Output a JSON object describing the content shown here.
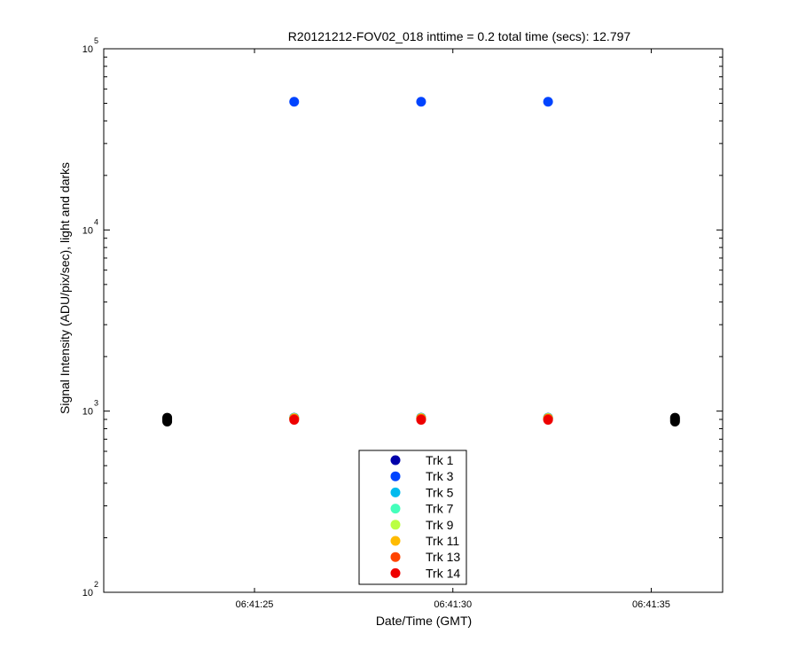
{
  "chart_data": {
    "type": "scatter",
    "title": "R20121212-FOV02_018 inttime = 0.2 total time (secs): 12.797",
    "xlabel": "Date/Time (GMT)",
    "ylabel": "Signal Intensity (ADU/pix/sec), light and darks",
    "x_scale": "time",
    "y_scale": "log",
    "xlim": [
      "06:41:21.2",
      "06:41:36.8"
    ],
    "ylim": [
      100,
      100000
    ],
    "x_ticks": [
      {
        "value": "06:41:25",
        "label": "06:41:25"
      },
      {
        "value": "06:41:30",
        "label": "06:41:30"
      },
      {
        "value": "06:41:35",
        "label": "06:41:35"
      }
    ],
    "y_ticks": [
      {
        "value": 100,
        "base": "10",
        "exponent": "2"
      },
      {
        "value": 1000,
        "base": "10",
        "exponent": "3"
      },
      {
        "value": 10000,
        "base": "10",
        "exponent": "4"
      },
      {
        "value": 100000,
        "base": "10",
        "exponent": "5"
      }
    ],
    "grid": false,
    "legend_position": "bottom-center",
    "series": [
      {
        "name": "Trk 1",
        "color": "#0000aa",
        "points": [
          [
            "06:41:26.0",
            920
          ],
          [
            "06:41:29.2",
            920
          ],
          [
            "06:41:32.4",
            920
          ]
        ]
      },
      {
        "name": "Trk 3",
        "color": "#0044ff",
        "points": [
          [
            "06:41:26.0",
            51000
          ],
          [
            "06:41:29.2",
            51000
          ],
          [
            "06:41:32.4",
            51000
          ]
        ]
      },
      {
        "name": "Trk 5",
        "color": "#00bbee",
        "points": [
          [
            "06:41:26.0",
            918
          ],
          [
            "06:41:29.2",
            918
          ],
          [
            "06:41:32.4",
            918
          ]
        ]
      },
      {
        "name": "Trk 7",
        "color": "#44ffbb",
        "points": [
          [
            "06:41:26.0",
            916
          ],
          [
            "06:41:29.2",
            916
          ],
          [
            "06:41:32.4",
            916
          ]
        ]
      },
      {
        "name": "Trk 9",
        "color": "#bbff44",
        "points": [
          [
            "06:41:26.0",
            914
          ],
          [
            "06:41:29.2",
            914
          ],
          [
            "06:41:32.4",
            914
          ]
        ]
      },
      {
        "name": "Trk 11",
        "color": "#ffbb00",
        "points": [
          [
            "06:41:26.0",
            912
          ],
          [
            "06:41:29.2",
            912
          ],
          [
            "06:41:32.4",
            912
          ]
        ]
      },
      {
        "name": "Trk 13",
        "color": "#ff4400",
        "points": [
          [
            "06:41:26.0",
            905
          ],
          [
            "06:41:29.2",
            905
          ],
          [
            "06:41:32.4",
            905
          ]
        ]
      },
      {
        "name": "Trk 14",
        "color": "#ee0000",
        "points": [
          [
            "06:41:26.0",
            895
          ],
          [
            "06:41:29.2",
            895
          ],
          [
            "06:41:32.4",
            895
          ]
        ]
      }
    ],
    "darks": {
      "color": "#000000",
      "points": [
        [
          "06:41:22.8",
          920
        ],
        [
          "06:41:22.8",
          905
        ],
        [
          "06:41:22.8",
          890
        ],
        [
          "06:41:22.8",
          875
        ],
        [
          "06:41:35.6",
          920
        ],
        [
          "06:41:35.6",
          905
        ],
        [
          "06:41:35.6",
          890
        ],
        [
          "06:41:35.6",
          875
        ]
      ]
    }
  }
}
